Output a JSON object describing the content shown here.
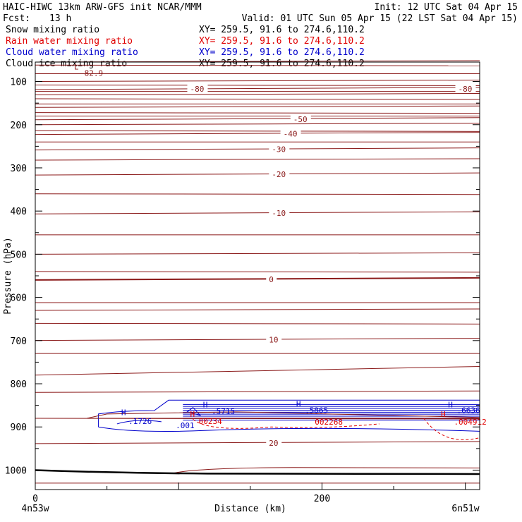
{
  "header": {
    "title": "HAIC-HIWC 13km ARW-GFS init   NCAR/MMM",
    "init": "Init: 12 UTC Sat 04 Apr 15",
    "fcst_label": "Fcst:",
    "fcst_value": "13 h",
    "valid": "Valid: 01 UTC Sun 05 Apr 15 (22 LST Sat 04 Apr 15)"
  },
  "legend": [
    {
      "name": "Snow mixing ratio",
      "xy": "XY= 259.5, 91.6 to 274.6,110.2",
      "color": "#000000"
    },
    {
      "name": "Rain water mixing ratio",
      "xy": "XY= 259.5, 91.6 to 274.6,110.2",
      "color": "#e00000"
    },
    {
      "name": "Cloud water mixing ratio",
      "xy": "XY= 259.5, 91.6 to 274.6,110.2",
      "color": "#0000cc"
    },
    {
      "name": "Cloud ice mixing ratio",
      "xy": "XY= 259.5, 91.6 to 274.6,110.2",
      "color": "#000000"
    }
  ],
  "chart_data": {
    "type": "line",
    "subtype": "vertical cross-section contour plot",
    "xlabel": "Distance (km)",
    "ylabel": "Pressure (hPa)",
    "xlim": [
      0,
      310
    ],
    "ylim": [
      1045,
      55
    ],
    "x_ticks": [
      0,
      200
    ],
    "y_ticks": [
      100,
      200,
      300,
      400,
      500,
      600,
      700,
      800,
      900,
      1000
    ],
    "x_endpoints": {
      "left": "4n53w",
      "right": "6n51w"
    },
    "colors": {
      "temperature": "#8b1a1a",
      "cloud_water": "#0000cc",
      "rain_water": "#e00000",
      "terrain": "#000000"
    },
    "temperature_contours": [
      {
        "label": "-80",
        "x_label": 108,
        "p": 117,
        "label2_x": 295
      },
      {
        "label": "-50",
        "x_label": 180,
        "p": 187
      },
      {
        "label": "-40",
        "x_label": 173,
        "p": 221
      },
      {
        "label": "-30",
        "x_label": 165,
        "p": 257
      },
      {
        "label": "-20",
        "x_label": 165,
        "p": 315
      },
      {
        "label": "-10",
        "x_label": 165,
        "p": 405
      },
      {
        "label": "0",
        "x_label": 163,
        "p": 558
      },
      {
        "label": "10",
        "x_label": 163,
        "p": 698
      },
      {
        "label": "20",
        "x_label": 163,
        "p": 937
      }
    ],
    "annotations": [
      {
        "text": "L",
        "x": 27,
        "p": 72,
        "color": "#8b1a1a"
      },
      {
        "text": "-82.9",
        "x": 31,
        "p": 87,
        "color": "#8b1a1a"
      },
      {
        "text": "H",
        "x": 60,
        "p": 873,
        "color": "#0000cc"
      },
      {
        "text": ".1726",
        "x": 65,
        "p": 893,
        "color": "#0000cc"
      },
      {
        "text": ".001",
        "x": 98,
        "p": 903,
        "color": "#0000cc"
      },
      {
        "text": "H",
        "x": 117,
        "p": 855,
        "color": "#0000cc"
      },
      {
        "text": ".5715",
        "x": 123,
        "p": 870,
        "color": "#0000cc"
      },
      {
        "text": "H",
        "x": 108,
        "p": 877,
        "color": "#e00000"
      },
      {
        "text": "00234",
        "x": 114,
        "p": 893,
        "color": "#e00000"
      },
      {
        "text": "H",
        "x": 182,
        "p": 853,
        "color": "#0000cc"
      },
      {
        "text": ".5865",
        "x": 188,
        "p": 868,
        "color": "#0000cc"
      },
      {
        "text": "002268",
        "x": 195,
        "p": 895,
        "color": "#e00000"
      },
      {
        "text": "H",
        "x": 288,
        "p": 855,
        "color": "#0000cc"
      },
      {
        "text": ".6636",
        "x": 294,
        "p": 868,
        "color": "#0000cc"
      },
      {
        "text": "H",
        "x": 283,
        "p": 877,
        "color": "#e00000"
      },
      {
        "text": ".004912",
        "x": 292,
        "p": 895,
        "color": "#e00000"
      }
    ]
  }
}
